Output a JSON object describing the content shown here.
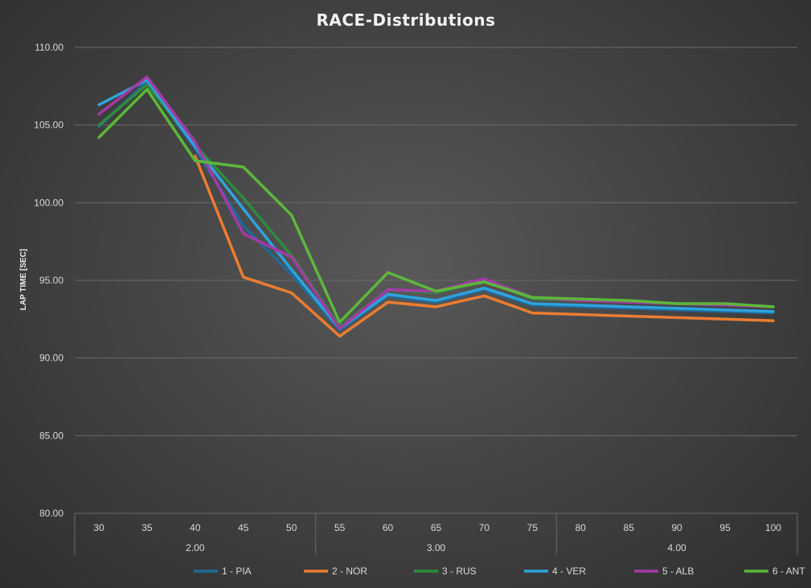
{
  "chart_data": {
    "type": "line",
    "title": "RACE-Distributions",
    "xlabel": "",
    "ylabel": "LAP TIME [SEC]",
    "ylim": [
      80,
      110
    ],
    "yticks": [
      "80.00",
      "85.00",
      "90.00",
      "95.00",
      "100.00",
      "105.00",
      "110.00"
    ],
    "categories": [
      "30",
      "35",
      "40",
      "45",
      "50",
      "55",
      "60",
      "65",
      "70",
      "75",
      "80",
      "85",
      "90",
      "95",
      "100"
    ],
    "groups": [
      {
        "label": "2.00",
        "span": [
          0,
          4
        ]
      },
      {
        "label": "3.00",
        "span": [
          5,
          9
        ]
      },
      {
        "label": "4.00",
        "span": [
          10,
          14
        ]
      }
    ],
    "grid": true,
    "legend_position": "bottom",
    "series": [
      {
        "name": "1 - PIA",
        "color": "#1f6a9a",
        "values": [
          104.9,
          107.8,
          103.5,
          98.5,
          95.4,
          91.8,
          94.0,
          93.6,
          94.4,
          93.4,
          93.3,
          93.2,
          93.1,
          93.0,
          92.9
        ]
      },
      {
        "name": "2 - NOR",
        "color": "#ed7d31",
        "values": [
          null,
          null,
          103.0,
          95.2,
          94.2,
          91.4,
          93.6,
          93.3,
          94.0,
          92.9,
          92.8,
          92.7,
          92.6,
          92.5,
          92.4
        ]
      },
      {
        "name": "3 - RUS",
        "color": "#2e8b3c",
        "values": [
          105.0,
          107.6,
          103.7,
          100.3,
          96.6,
          92.0,
          94.4,
          94.2,
          95.0,
          93.8,
          93.7,
          93.7,
          93.5,
          93.4,
          93.3
        ]
      },
      {
        "name": "4 - VER",
        "color": "#2ea3dd",
        "values": [
          106.3,
          107.9,
          103.6,
          99.6,
          95.7,
          91.9,
          94.1,
          93.7,
          94.5,
          93.5,
          93.4,
          93.3,
          93.2,
          93.1,
          93.0
        ]
      },
      {
        "name": "5 - ALB",
        "color": "#a43aa6",
        "values": [
          105.7,
          108.1,
          103.9,
          98.0,
          96.5,
          91.9,
          94.4,
          94.3,
          95.1,
          93.9,
          93.7,
          93.6,
          93.5,
          93.4,
          93.3
        ]
      },
      {
        "name": "6 - ANT",
        "color": "#5cb83a",
        "values": [
          104.2,
          107.3,
          102.7,
          102.3,
          99.2,
          92.3,
          95.5,
          94.3,
          94.9,
          93.9,
          93.8,
          93.7,
          93.5,
          93.5,
          93.3
        ]
      }
    ]
  }
}
